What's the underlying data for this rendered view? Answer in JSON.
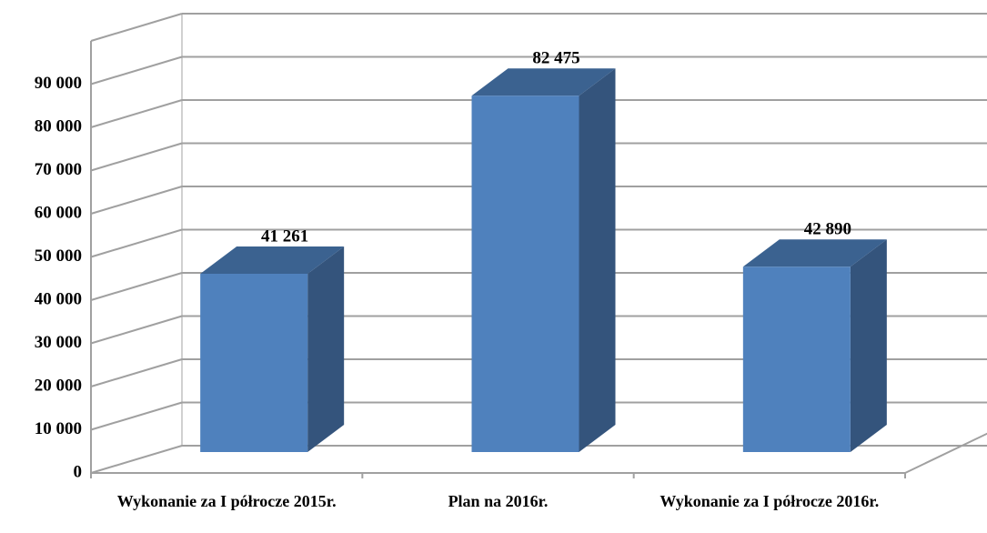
{
  "chart_data": {
    "type": "bar3d",
    "categories": [
      "Wykonanie za I półrocze 2015r.",
      "Plan na 2016r.",
      "Wykonanie za I półrocze 2016r."
    ],
    "values": [
      41261,
      82475,
      42890
    ],
    "value_labels": [
      "41 261",
      "82 475",
      "42 890"
    ],
    "color": "#4f81bd",
    "ylim": [
      0,
      100000
    ],
    "yticks": [
      0,
      {
        "value": 10000,
        "label": "10 000"
      },
      {
        "value": 20000,
        "label": "20 000"
      },
      {
        "value": 30000,
        "label": "30 000"
      },
      {
        "value": 40000,
        "label": "40 000"
      },
      {
        "value": 50000,
        "label": "50 000"
      },
      {
        "value": 60000,
        "label": "60 000"
      },
      {
        "value": 70000,
        "label": "70 000"
      },
      {
        "value": 80000,
        "label": "80 000"
      },
      {
        "value": 90000,
        "label": "90 000"
      }
    ],
    "grid": true
  }
}
